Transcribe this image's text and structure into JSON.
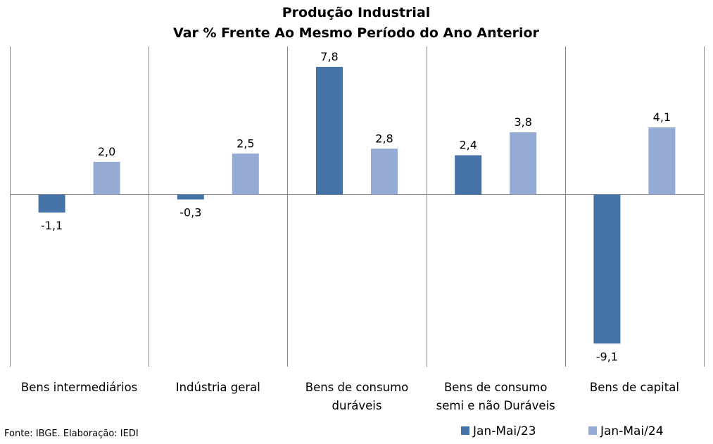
{
  "chart_data": {
    "type": "bar",
    "title_lines": [
      "Produção Industrial",
      "Var % Frente Ao Mesmo Período do Ano Anterior"
    ],
    "categories": [
      [
        "Bens intermediários"
      ],
      [
        "Indústria geral"
      ],
      [
        "Bens de consumo",
        "duráveis"
      ],
      [
        "Bens de consumo",
        "semi e não Duráveis"
      ],
      [
        "Bens de capital"
      ]
    ],
    "series": [
      {
        "name": "Jan-Mai/23",
        "values": [
          -1.1,
          -0.3,
          7.8,
          2.4,
          -9.1
        ],
        "labels": [
          "-1,1",
          "-0,3",
          "7,8",
          "2,4",
          "-9,1"
        ],
        "color": "#4572A7"
      },
      {
        "name": "Jan-Mai/24",
        "values": [
          2.0,
          2.5,
          2.8,
          3.8,
          4.1
        ],
        "labels": [
          "2,0",
          "2,5",
          "2,8",
          "3,8",
          "4,1"
        ],
        "color": "#95ABD3"
      }
    ],
    "ylim": [
      -10.5,
      9
    ],
    "grid": false,
    "legend_position": "bottom-right"
  },
  "source": "Fonte: IBGE. Elaboração: IEDI"
}
